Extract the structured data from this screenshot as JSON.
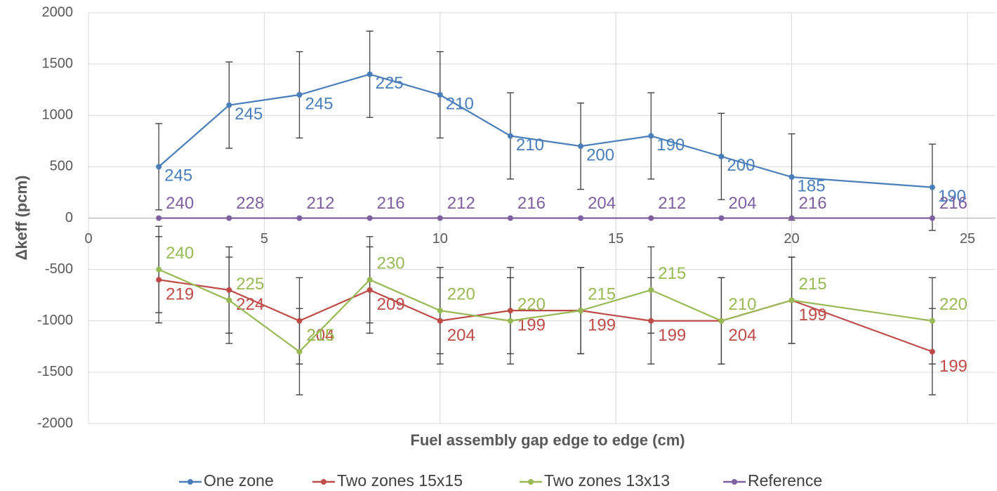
{
  "chart_data": {
    "type": "line",
    "x_label": "Fuel assembly gap edge to edge (cm)",
    "y_label": "Δkeff (pcm)",
    "x": [
      2,
      4,
      6,
      8,
      10,
      12,
      14,
      16,
      18,
      20,
      24
    ],
    "xlim": [
      0,
      25.8
    ],
    "xticks": [
      0,
      5,
      10,
      15,
      20,
      25
    ],
    "ylim": [
      -2000,
      2000
    ],
    "yticks": [
      -2000,
      -1500,
      -1000,
      -500,
      0,
      500,
      1000,
      1500,
      2000
    ],
    "grid": true,
    "legend": "bottom",
    "series": [
      {
        "name": "One zone",
        "color": "#4a7ebb",
        "values": [
          500,
          1100,
          1200,
          1400,
          1200,
          800,
          700,
          800,
          600,
          400,
          300
        ],
        "errors": [
          420,
          420,
          420,
          420,
          420,
          420,
          420,
          420,
          420,
          420,
          420
        ],
        "labels": [
          245,
          245,
          245,
          225,
          210,
          210,
          200,
          190,
          200,
          185,
          190
        ]
      },
      {
        "name": "Two zones 15x15",
        "color": "#be4b48",
        "values": [
          -600,
          -700,
          -1000,
          -700,
          -1000,
          -900,
          -900,
          -1000,
          -1000,
          -800,
          -1300
        ],
        "errors": [
          420,
          420,
          420,
          420,
          420,
          420,
          420,
          420,
          420,
          420,
          420
        ],
        "labels": [
          219,
          224,
          204,
          209,
          204,
          199,
          199,
          199,
          204,
          199,
          199
        ]
      },
      {
        "name": "Two zones 13x13",
        "color": "#98b954",
        "values": [
          -500,
          -800,
          -1300,
          -600,
          -900,
          -1000,
          -900,
          -700,
          -1000,
          -800,
          -1000
        ],
        "errors": [
          420,
          420,
          420,
          420,
          420,
          420,
          420,
          420,
          420,
          420,
          420
        ],
        "labels": [
          240,
          225,
          215,
          230,
          220,
          220,
          215,
          215,
          210,
          215,
          220
        ]
      },
      {
        "name": "Reference",
        "color": "#7d60a0",
        "values": [
          0,
          0,
          0,
          0,
          0,
          0,
          0,
          0,
          0,
          0,
          0
        ],
        "labels": [
          240,
          228,
          212,
          216,
          212,
          216,
          204,
          212,
          204,
          216,
          216
        ]
      }
    ]
  }
}
